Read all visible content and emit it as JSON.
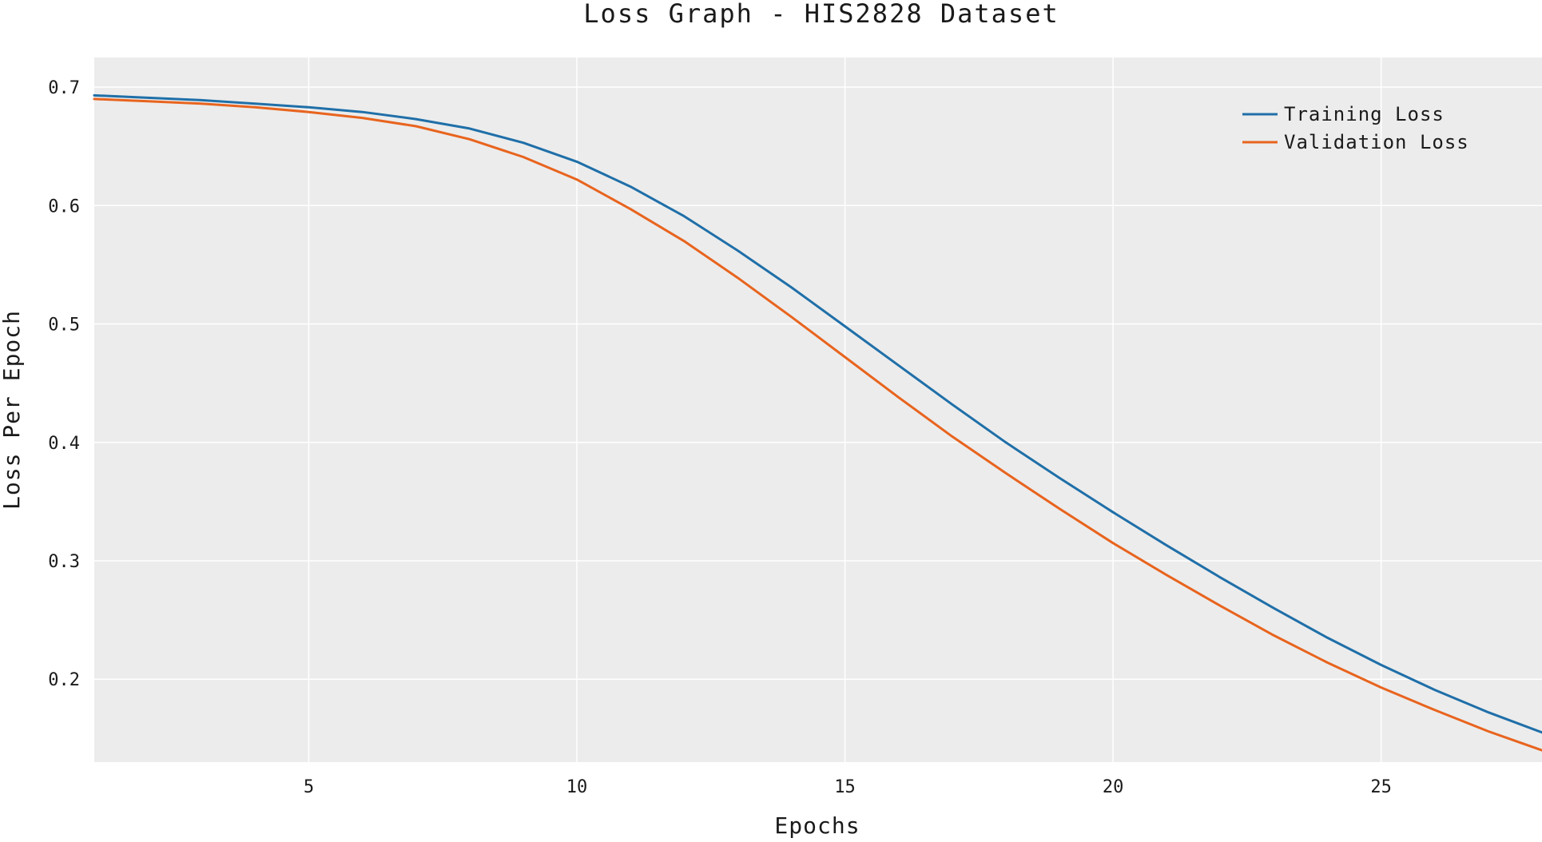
{
  "chart_data": {
    "type": "line",
    "title": "Loss Graph - HIS2828 Dataset",
    "xlabel": "Epochs",
    "ylabel": "Loss Per Epoch",
    "xlim": [
      1,
      28
    ],
    "ylim": [
      0.13,
      0.725
    ],
    "xticks": [
      5,
      10,
      15,
      20,
      25
    ],
    "yticks": [
      0.2,
      0.3,
      0.4,
      0.5,
      0.6,
      0.7
    ],
    "grid": true,
    "legend_position": "top-right",
    "x": [
      1,
      2,
      3,
      4,
      5,
      6,
      7,
      8,
      9,
      10,
      11,
      12,
      13,
      14,
      15,
      16,
      17,
      18,
      19,
      20,
      21,
      22,
      23,
      24,
      25,
      26,
      27,
      28
    ],
    "series": [
      {
        "name": "Training Loss",
        "color": "#1f6fa8",
        "values": [
          0.693,
          0.691,
          0.689,
          0.686,
          0.683,
          0.679,
          0.673,
          0.665,
          0.653,
          0.637,
          0.616,
          0.591,
          0.562,
          0.531,
          0.498,
          0.465,
          0.432,
          0.4,
          0.37,
          0.341,
          0.313,
          0.286,
          0.26,
          0.235,
          0.212,
          0.191,
          0.172,
          0.155
        ]
      },
      {
        "name": "Validation Loss",
        "color": "#e8641e",
        "values": [
          0.69,
          0.688,
          0.686,
          0.683,
          0.679,
          0.674,
          0.667,
          0.656,
          0.641,
          0.622,
          0.597,
          0.57,
          0.539,
          0.506,
          0.472,
          0.438,
          0.405,
          0.374,
          0.344,
          0.315,
          0.288,
          0.262,
          0.237,
          0.214,
          0.193,
          0.174,
          0.156,
          0.14
        ]
      }
    ]
  }
}
